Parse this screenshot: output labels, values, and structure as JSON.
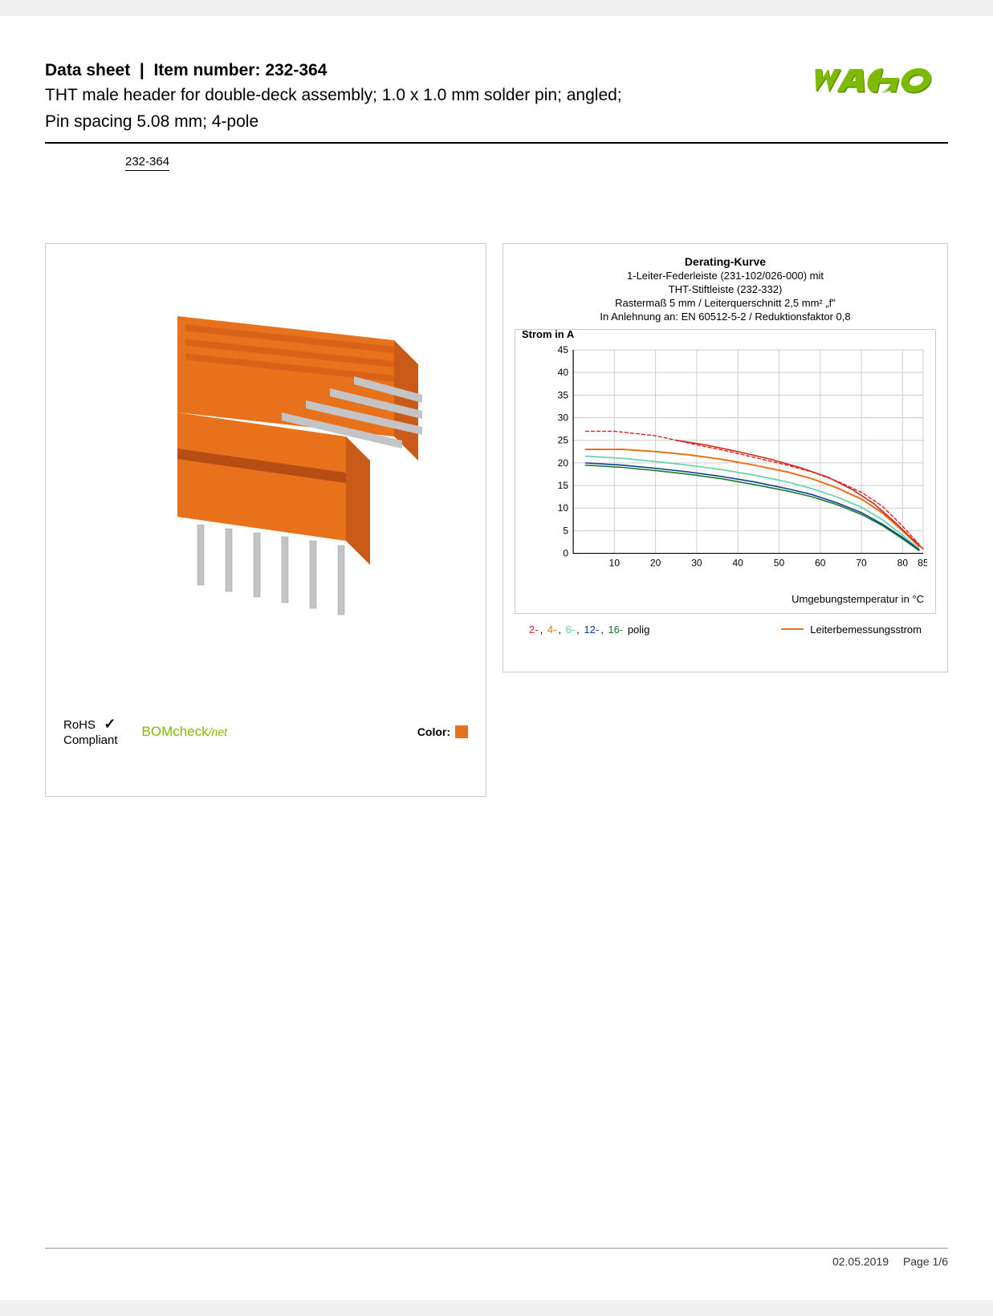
{
  "header": {
    "datasheet_label": "Data sheet",
    "item_label": "Item number:",
    "item_number": "232-364",
    "description_line1": "THT male header for double-deck assembly; 1.0 x 1.0 mm solder pin; angled;",
    "description_line2": "Pin spacing 5.08 mm; 4-pole",
    "item_link": "232-364"
  },
  "logo": {
    "text": "WAGO",
    "fill": "#7dba00",
    "shadow": "#5a8a00"
  },
  "product_image": {
    "body_color": "#e8711c",
    "pin_color": "#c4c4c4"
  },
  "compliance": {
    "rohs_line1": "RoHS",
    "rohs_line2": "Compliant",
    "check": "✓",
    "bomcheck": "BOMcheck",
    "bomcheck_suffix": "/net",
    "color_label": "Color:",
    "color_swatch": "#e8711c"
  },
  "chart": {
    "title": "Derating-Kurve",
    "sub1": "1-Leiter-Federleiste (231-102/026-000) mit",
    "sub2": "THT-Stiftleiste (232-332)",
    "sub3": "Rastermaß 5 mm / Leiterquerschnitt 2,5 mm² „f\"",
    "sub4": "In Anlehnung an: EN 60512-5-2 / Reduktionsfaktor 0,8",
    "ylabel": "Strom in A",
    "xlabel": "Umgebungstemperatur in °C",
    "ylim": [
      0,
      45
    ],
    "ytick_step": 5,
    "yticks": [
      0,
      5,
      10,
      15,
      20,
      25,
      30,
      35,
      40,
      45
    ],
    "xlim": [
      0,
      85
    ],
    "xticks": [
      10,
      20,
      30,
      40,
      50,
      60,
      70,
      80,
      85
    ],
    "grid_color": "#cccccc",
    "axis_color": "#000000",
    "bg_color": "#ffffff",
    "series": [
      {
        "name": "2-polig",
        "color": "#d4281e",
        "dash": "4 3",
        "width": 1.4,
        "points": [
          [
            3,
            27
          ],
          [
            10,
            27
          ],
          [
            20,
            26
          ],
          [
            25,
            25
          ],
          [
            30,
            24
          ],
          [
            38,
            22.5
          ],
          [
            45,
            21
          ],
          [
            52,
            19.5
          ],
          [
            58,
            18
          ],
          [
            64,
            16
          ],
          [
            70,
            13.5
          ],
          [
            75,
            10.5
          ],
          [
            80,
            6
          ],
          [
            84,
            2
          ]
        ]
      },
      {
        "name": "4-polig",
        "color": "#e8711c",
        "dash": "none",
        "width": 2.0,
        "points": [
          [
            3,
            23
          ],
          [
            12,
            23
          ],
          [
            20,
            22.5
          ],
          [
            28,
            21.8
          ],
          [
            36,
            20.8
          ],
          [
            44,
            19.5
          ],
          [
            52,
            18
          ],
          [
            58,
            16.5
          ],
          [
            64,
            14.5
          ],
          [
            70,
            12
          ],
          [
            75,
            9
          ],
          [
            80,
            5
          ],
          [
            84,
            1.5
          ]
        ]
      },
      {
        "name": "6-polig",
        "color": "#5fd0a8",
        "dash": "none",
        "width": 1.6,
        "points": [
          [
            3,
            21.5
          ],
          [
            12,
            21
          ],
          [
            20,
            20.3
          ],
          [
            28,
            19.5
          ],
          [
            36,
            18.5
          ],
          [
            44,
            17.3
          ],
          [
            52,
            15.8
          ],
          [
            58,
            14.3
          ],
          [
            64,
            12.5
          ],
          [
            70,
            10.2
          ],
          [
            75,
            7.5
          ],
          [
            80,
            4
          ],
          [
            84,
            1
          ]
        ]
      },
      {
        "name": "12-polig",
        "color": "#0a3d8f",
        "dash": "none",
        "width": 1.6,
        "points": [
          [
            3,
            20
          ],
          [
            12,
            19.5
          ],
          [
            20,
            18.8
          ],
          [
            28,
            18
          ],
          [
            36,
            17
          ],
          [
            44,
            15.8
          ],
          [
            52,
            14.3
          ],
          [
            58,
            13
          ],
          [
            64,
            11.2
          ],
          [
            70,
            9
          ],
          [
            75,
            6.5
          ],
          [
            80,
            3.5
          ],
          [
            84,
            0.8
          ]
        ]
      },
      {
        "name": "16-polig",
        "color": "#1a7a2e",
        "dash": "none",
        "width": 1.6,
        "points": [
          [
            3,
            19.5
          ],
          [
            12,
            19
          ],
          [
            20,
            18.3
          ],
          [
            28,
            17.5
          ],
          [
            36,
            16.5
          ],
          [
            44,
            15.2
          ],
          [
            52,
            13.8
          ],
          [
            58,
            12.5
          ],
          [
            64,
            10.8
          ],
          [
            70,
            8.6
          ],
          [
            75,
            6.2
          ],
          [
            80,
            3.2
          ],
          [
            84,
            0.6
          ]
        ]
      },
      {
        "name": "2-polig-solid",
        "color": "#d4281e",
        "dash": "none",
        "width": 1.6,
        "points": [
          [
            25,
            25
          ],
          [
            32,
            24
          ],
          [
            40,
            22.5
          ],
          [
            48,
            20.8
          ],
          [
            55,
            19
          ],
          [
            62,
            16.8
          ],
          [
            68,
            14
          ],
          [
            73,
            11
          ],
          [
            78,
            7
          ],
          [
            82,
            3.5
          ],
          [
            85,
            1
          ]
        ]
      }
    ],
    "legend_left": [
      {
        "text": "2-",
        "color": "#d4281e"
      },
      {
        "text": "4-",
        "color": "#e8711c"
      },
      {
        "text": "6-",
        "color": "#5fd0a8"
      },
      {
        "text": "12-",
        "color": "#0a3d8f"
      },
      {
        "text": "16-",
        "color": "#1a7a2e"
      },
      {
        "text": " polig",
        "color": "#000000"
      }
    ],
    "legend_right": {
      "line_color": "#e8711c",
      "label": "Leiterbemessungsstrom"
    }
  },
  "footer": {
    "date": "02.05.2019",
    "page": "Page 1/6"
  }
}
